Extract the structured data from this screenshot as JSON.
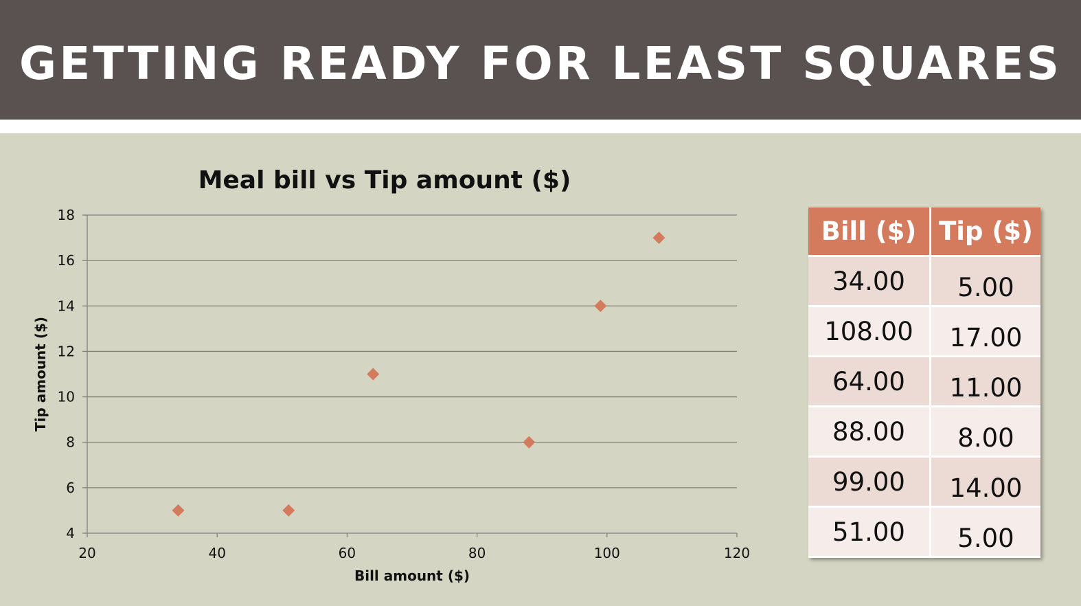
{
  "slide": {
    "title": "GETTING READY FOR LEAST SQUARES"
  },
  "colors": {
    "title_bar": "#5a5151",
    "background": "#d4d6c3",
    "accent": "#d47b5e",
    "gridline": "#7f7f7f"
  },
  "chart_data": {
    "type": "scatter",
    "title": "Meal bill vs Tip amount ($)",
    "xlabel": "Bill amount ($)",
    "ylabel": "Tip amount ($)",
    "xlim": [
      20,
      120
    ],
    "ylim": [
      4,
      18
    ],
    "xticks": [
      20,
      40,
      60,
      80,
      100,
      120
    ],
    "yticks": [
      4,
      6,
      8,
      10,
      12,
      14,
      16,
      18
    ],
    "grid": "horizontal",
    "legend": "none",
    "marker": "diamond",
    "x": [
      34,
      108,
      64,
      88,
      99,
      51
    ],
    "y": [
      5,
      17,
      11,
      8,
      14,
      5
    ]
  },
  "table": {
    "headers": [
      "Bill ($)",
      "Tip ($)"
    ],
    "rows": [
      [
        "34.00",
        "5.00"
      ],
      [
        "108.00",
        "17.00"
      ],
      [
        "64.00",
        "11.00"
      ],
      [
        "88.00",
        "8.00"
      ],
      [
        "99.00",
        "14.00"
      ],
      [
        "51.00",
        "5.00"
      ]
    ]
  }
}
